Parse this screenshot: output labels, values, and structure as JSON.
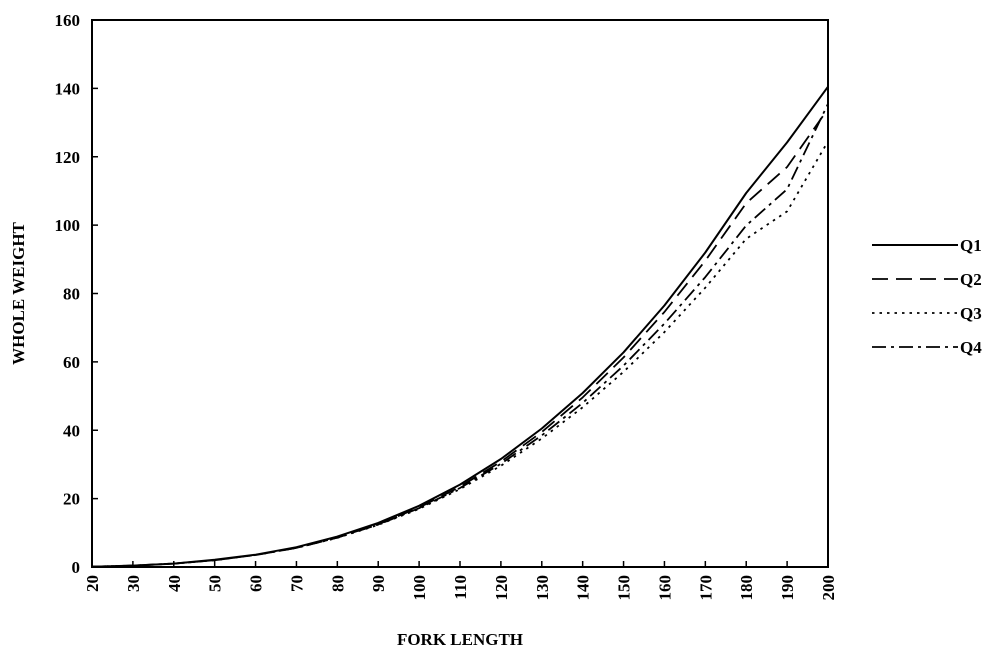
{
  "chart_data": {
    "type": "line",
    "title": "",
    "xlabel": "FORK LENGTH",
    "ylabel": "WHOLE WEIGHT",
    "xlim": [
      20,
      200
    ],
    "ylim": [
      0,
      160
    ],
    "x_ticks": [
      20,
      30,
      40,
      50,
      60,
      70,
      80,
      90,
      100,
      110,
      120,
      130,
      140,
      150,
      160,
      170,
      180,
      190,
      200
    ],
    "y_ticks": [
      0,
      20,
      40,
      60,
      80,
      100,
      120,
      140,
      160
    ],
    "grid": false,
    "legend_position": "right",
    "x": [
      20,
      30,
      40,
      50,
      60,
      70,
      80,
      90,
      100,
      110,
      120,
      130,
      140,
      150,
      160,
      170,
      180,
      190,
      200
    ],
    "series": [
      {
        "name": "Q1",
        "style": "solid",
        "values": [
          0.1,
          0.4,
          1.0,
          2.1,
          3.6,
          5.8,
          8.9,
          12.9,
          17.9,
          24.1,
          31.6,
          40.5,
          50.9,
          62.8,
          76.5,
          92.0,
          109.4,
          124.2,
          140.5
        ]
      },
      {
        "name": "Q2",
        "style": "dashed",
        "values": [
          0.1,
          0.4,
          1.0,
          2.0,
          3.5,
          5.6,
          8.6,
          12.5,
          17.4,
          23.5,
          30.8,
          39.5,
          49.6,
          61.3,
          74.6,
          89.6,
          106.4,
          117.0,
          134.0
        ]
      },
      {
        "name": "Q3",
        "style": "dotted",
        "values": [
          0.1,
          0.4,
          1.0,
          2.0,
          3.5,
          5.6,
          8.5,
          12.3,
          17.0,
          22.8,
          29.6,
          37.6,
          46.7,
          57.1,
          68.7,
          81.7,
          96.0,
          104.0,
          124.5
        ]
      },
      {
        "name": "Q4",
        "style": "dash-dot",
        "values": [
          0.1,
          0.4,
          1.0,
          2.0,
          3.5,
          5.6,
          8.6,
          12.4,
          17.2,
          23.1,
          30.2,
          38.5,
          48.0,
          58.9,
          71.2,
          84.8,
          99.9,
          110.5,
          135.5
        ]
      }
    ]
  }
}
